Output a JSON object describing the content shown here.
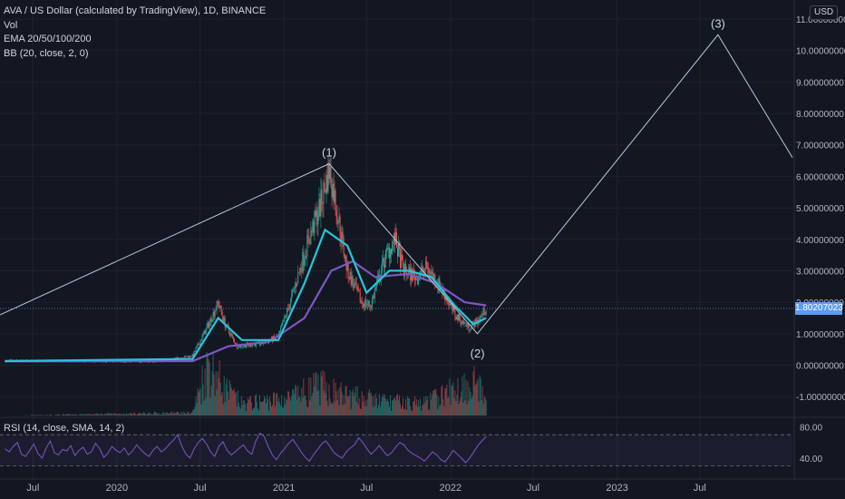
{
  "legend": {
    "title": "AVA / US Dollar (calculated by TradingView), 1D, BINANCE",
    "vol": "Vol",
    "ema": "EMA 20/50/100/200",
    "bb": "BB (20, close, 2, 0)"
  },
  "rsi_legend": "RSI (14, close, SMA, 14, 2)",
  "currency_badge": "USD",
  "last_price_label": "1.80207023",
  "colors": {
    "background": "#131722",
    "grid": "#1e222d",
    "wave_line": "#b8c7e0",
    "candle_up": "#26a69a",
    "candle_down": "#ef5350",
    "ema_cyan": "#26c6da",
    "ema_purple": "#7e57c2",
    "ema_red": "#ef5350",
    "rsi_line": "#7e57c2",
    "price_tag": "#5b9cf6"
  },
  "chart_data": [
    {
      "type": "line",
      "series_kind": "candlestick-with-wave-projection",
      "y_axis_ticks": [
        "11.00000000",
        "10.00000000",
        "9.00000000",
        "8.00000000",
        "7.00000000",
        "6.00000000",
        "5.00000000",
        "4.00000000",
        "3.00000000",
        "2.00000000",
        "1.00000000",
        "0.00000000",
        "-1.00000000"
      ],
      "y_tick_values": [
        11,
        10,
        9,
        8,
        7,
        6,
        5,
        4,
        3,
        2,
        1,
        0,
        -1
      ],
      "ylim": [
        -1.6,
        11.2
      ],
      "x_axis_ticks": [
        "Jul",
        "2020",
        "Jul",
        "2021",
        "Jul",
        "2022",
        "Jul",
        "2023",
        "Jul"
      ],
      "x_tick_dates": [
        "2019-07-01",
        "2020-01-01",
        "2020-07-01",
        "2021-01-01",
        "2021-07-01",
        "2022-01-01",
        "2022-07-01",
        "2023-01-01",
        "2023-07-01"
      ],
      "xlim": [
        "2019-04-20",
        "2024-01-20"
      ],
      "last_price": 1.80207023,
      "price_path": [
        [
          "2019-05-01",
          0.14
        ],
        [
          "2019-09-01",
          0.13
        ],
        [
          "2020-01-01",
          0.12
        ],
        [
          "2020-04-01",
          0.12
        ],
        [
          "2020-06-15",
          0.3
        ],
        [
          "2020-07-20",
          1.3
        ],
        [
          "2020-08-10",
          2.0
        ],
        [
          "2020-08-25",
          1.3
        ],
        [
          "2020-09-20",
          0.6
        ],
        [
          "2020-11-15",
          0.7
        ],
        [
          "2020-12-20",
          0.9
        ],
        [
          "2021-01-15",
          2.0
        ],
        [
          "2021-02-20",
          3.8
        ],
        [
          "2021-03-20",
          5.0
        ],
        [
          "2021-04-10",
          6.2
        ],
        [
          "2021-04-20",
          5.5
        ],
        [
          "2021-05-20",
          3.0
        ],
        [
          "2021-06-20",
          2.0
        ],
        [
          "2021-07-10",
          1.9
        ],
        [
          "2021-08-10",
          3.4
        ],
        [
          "2021-09-01",
          4.0
        ],
        [
          "2021-09-20",
          3.0
        ],
        [
          "2021-10-20",
          2.8
        ],
        [
          "2021-11-10",
          3.1
        ],
        [
          "2021-12-10",
          2.5
        ],
        [
          "2022-01-10",
          1.6
        ],
        [
          "2022-02-10",
          1.2
        ],
        [
          "2022-03-01",
          1.4
        ],
        [
          "2022-03-20",
          1.8
        ]
      ],
      "ema_fast": [
        [
          "2019-05-01",
          0.13
        ],
        [
          "2020-06-15",
          0.2
        ],
        [
          "2020-08-10",
          1.5
        ],
        [
          "2020-10-01",
          0.8
        ],
        [
          "2020-12-20",
          0.8
        ],
        [
          "2021-02-15",
          2.6
        ],
        [
          "2021-04-01",
          4.3
        ],
        [
          "2021-05-20",
          3.8
        ],
        [
          "2021-07-01",
          2.3
        ],
        [
          "2021-08-20",
          3.0
        ],
        [
          "2021-10-01",
          3.0
        ],
        [
          "2021-11-20",
          2.8
        ],
        [
          "2022-01-10",
          1.9
        ],
        [
          "2022-02-20",
          1.3
        ],
        [
          "2022-03-20",
          1.5
        ]
      ],
      "ema_slow": [
        [
          "2019-05-01",
          0.12
        ],
        [
          "2020-06-15",
          0.13
        ],
        [
          "2020-09-01",
          0.6
        ],
        [
          "2020-12-01",
          0.75
        ],
        [
          "2021-02-15",
          1.5
        ],
        [
          "2021-04-15",
          3.0
        ],
        [
          "2021-06-01",
          3.3
        ],
        [
          "2021-07-20",
          2.8
        ],
        [
          "2021-10-01",
          2.9
        ],
        [
          "2021-12-01",
          2.6
        ],
        [
          "2022-02-01",
          2.0
        ],
        [
          "2022-03-20",
          1.9
        ]
      ],
      "volume_path": [
        [
          "2019-05-01",
          0.0
        ],
        [
          "2020-06-15",
          0.05
        ],
        [
          "2020-07-20",
          0.95
        ],
        [
          "2020-08-20",
          0.5
        ],
        [
          "2020-10-01",
          0.2
        ],
        [
          "2021-01-15",
          0.3
        ],
        [
          "2021-03-20",
          0.5
        ],
        [
          "2021-05-10",
          0.35
        ],
        [
          "2021-08-01",
          0.25
        ],
        [
          "2021-11-01",
          0.2
        ],
        [
          "2022-02-25",
          0.6
        ],
        [
          "2022-03-20",
          0.2
        ]
      ],
      "wave_projection": [
        {
          "date": "2019-04-20",
          "value": 1.6,
          "label": ""
        },
        {
          "date": "2021-04-10",
          "value": 6.4,
          "label": "(1)"
        },
        {
          "date": "2022-03-01",
          "value": 1.0,
          "label": "(2)"
        },
        {
          "date": "2023-08-10",
          "value": 10.5,
          "label": "(3)"
        },
        {
          "date": "2024-01-20",
          "value": 6.6,
          "label": ""
        }
      ]
    },
    {
      "type": "line",
      "name": "RSI (14, close, SMA, 14, 2)",
      "y_axis_ticks": [
        "80.00",
        "40.00"
      ],
      "y_tick_values": [
        80,
        40
      ],
      "bands": [
        70,
        30
      ],
      "ylim": [
        20,
        90
      ],
      "values": [
        52,
        48,
        55,
        60,
        45,
        42,
        50,
        58,
        46,
        40,
        53,
        62,
        47,
        44,
        51,
        49,
        56,
        43,
        50,
        54,
        45,
        48,
        59,
        52,
        41,
        46,
        55,
        50,
        47,
        53,
        44,
        49,
        57,
        51,
        46,
        42,
        50,
        55,
        48,
        52,
        58,
        63,
        70,
        55,
        45,
        40,
        52,
        60,
        65,
        58,
        48,
        42,
        55,
        61,
        50,
        44,
        48,
        53,
        57,
        49,
        45,
        62,
        72,
        68,
        55,
        44,
        38,
        46,
        52,
        59,
        64,
        56,
        48,
        41,
        36,
        44,
        51,
        58,
        62,
        55,
        47,
        43,
        40,
        48,
        53,
        57,
        66,
        60,
        52,
        45,
        50,
        56,
        49,
        43,
        47,
        54,
        60,
        57,
        50,
        46,
        43,
        40,
        36,
        42,
        48,
        44,
        38,
        35,
        42,
        50,
        45,
        40,
        34,
        40,
        48,
        56,
        62,
        68
      ]
    }
  ]
}
